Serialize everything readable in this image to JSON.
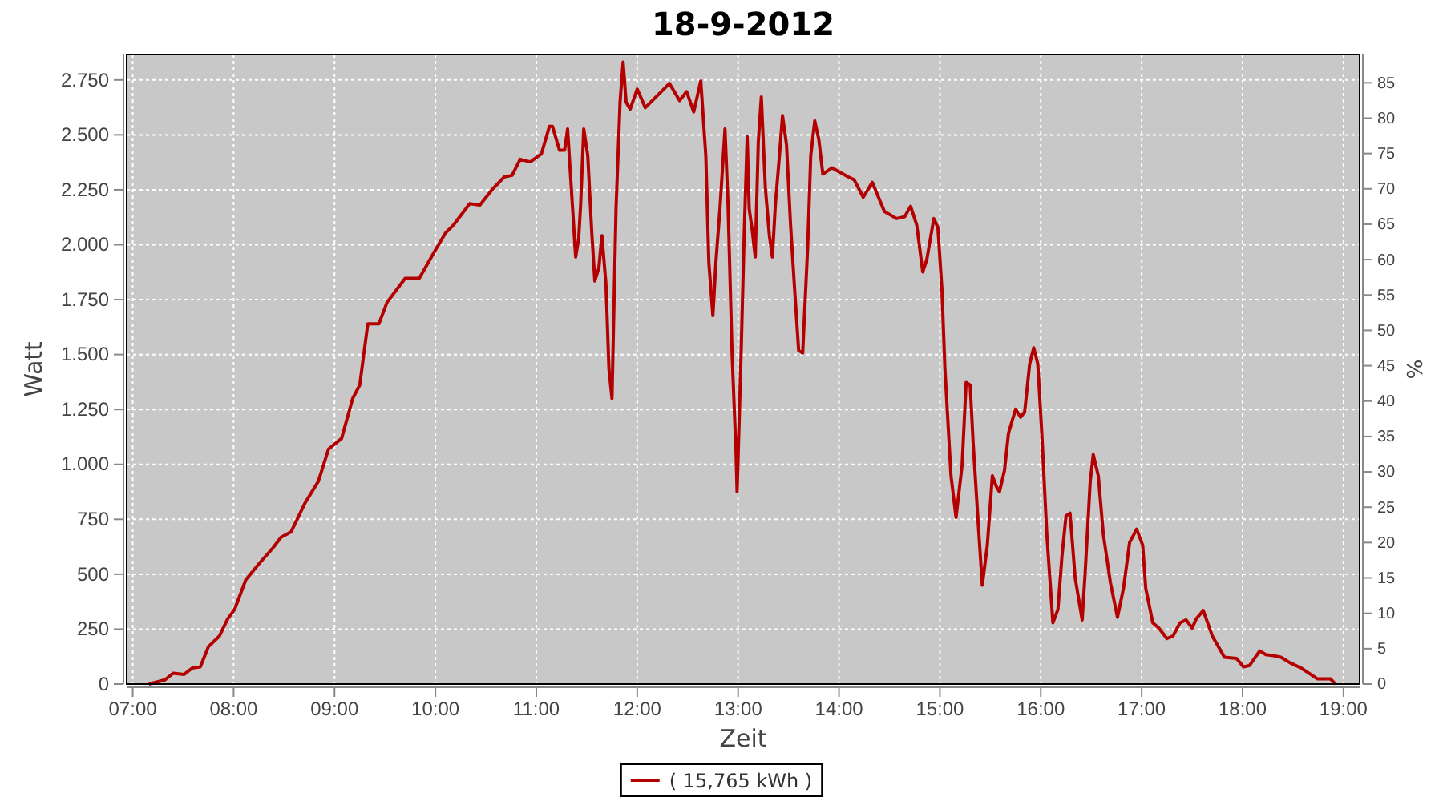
{
  "chart_data": {
    "type": "line",
    "title": "18-9-2012",
    "xlabel": "Zeit",
    "ylabel": "Watt",
    "y2label": "%",
    "xlim": [
      6.94,
      19.16
    ],
    "ylim": [
      0,
      2866
    ],
    "y2lim": [
      0,
      89
    ],
    "xticks": [
      {
        "value": 7,
        "label": "07:00"
      },
      {
        "value": 8,
        "label": "08:00"
      },
      {
        "value": 9,
        "label": "09:00"
      },
      {
        "value": 10,
        "label": "10:00"
      },
      {
        "value": 11,
        "label": "11:00"
      },
      {
        "value": 12,
        "label": "12:00"
      },
      {
        "value": 13,
        "label": "13:00"
      },
      {
        "value": 14,
        "label": "14:00"
      },
      {
        "value": 15,
        "label": "15:00"
      },
      {
        "value": 16,
        "label": "16:00"
      },
      {
        "value": 17,
        "label": "17:00"
      },
      {
        "value": 18,
        "label": "18:00"
      },
      {
        "value": 19,
        "label": "19:00"
      }
    ],
    "yticks": [
      0,
      250,
      500,
      750,
      {
        "value": 1000,
        "label": "1.000"
      },
      {
        "value": 1250,
        "label": "1.250"
      },
      {
        "value": 1500,
        "label": "1.500"
      },
      {
        "value": 1750,
        "label": "1.750"
      },
      {
        "value": 2000,
        "label": "2.000"
      },
      {
        "value": 2250,
        "label": "2.250"
      },
      {
        "value": 2500,
        "label": "2.500"
      },
      {
        "value": 2750,
        "label": "2.750"
      }
    ],
    "y2ticks": [
      0,
      5,
      10,
      15,
      20,
      25,
      30,
      35,
      40,
      45,
      50,
      55,
      60,
      65,
      70,
      75,
      80,
      85
    ],
    "grid": true,
    "legend": "bottom",
    "marker": "none",
    "line_style": "solid",
    "series": [
      {
        "name": "( 15,765 kWh )",
        "color": "#b40000",
        "x": [
          7.16,
          7.32,
          7.4,
          7.51,
          7.59,
          7.67,
          7.75,
          7.86,
          7.94,
          8.01,
          8.12,
          8.25,
          8.39,
          8.47,
          8.57,
          8.71,
          8.84,
          8.94,
          9.07,
          9.18,
          9.25,
          9.33,
          9.44,
          9.52,
          9.7,
          9.84,
          9.99,
          10.1,
          10.18,
          10.34,
          10.44,
          10.57,
          10.68,
          10.76,
          10.84,
          10.94,
          11.05,
          11.13,
          11.16,
          11.23,
          11.28,
          11.31,
          11.34,
          11.39,
          11.42,
          11.44,
          11.47,
          11.51,
          11.55,
          11.58,
          11.62,
          11.65,
          11.69,
          11.72,
          11.75,
          11.79,
          11.83,
          11.86,
          11.89,
          11.93,
          12,
          12.08,
          12.32,
          12.42,
          12.49,
          12.56,
          12.63,
          12.68,
          12.71,
          12.75,
          12.78,
          12.82,
          12.87,
          12.9,
          12.94,
          12.98,
          12.99,
          13.03,
          13.06,
          13.09,
          13.11,
          13.14,
          13.17,
          13.2,
          13.23,
          13.27,
          13.31,
          13.34,
          13.37,
          13.41,
          13.44,
          13.48,
          13.52,
          13.56,
          13.6,
          13.64,
          13.69,
          13.72,
          13.76,
          13.8,
          13.84,
          13.93,
          14.09,
          14.15,
          14.24,
          14.33,
          14.45,
          14.57,
          14.65,
          14.71,
          14.77,
          14.83,
          14.87,
          14.94,
          14.98,
          15.02,
          15.05,
          15.11,
          15.16,
          15.22,
          15.26,
          15.3,
          15.33,
          15.38,
          15.42,
          15.47,
          15.52,
          15.56,
          15.59,
          15.64,
          15.68,
          15.75,
          15.8,
          15.84,
          15.89,
          15.93,
          15.97,
          16.01,
          16.06,
          16.12,
          16.17,
          16.21,
          16.25,
          16.29,
          16.34,
          16.41,
          16.44,
          16.49,
          16.52,
          16.57,
          16.62,
          16.69,
          16.76,
          16.82,
          16.88,
          16.95,
          17.01,
          17.04,
          17.11,
          17.17,
          17.25,
          17.31,
          17.38,
          17.44,
          17.5,
          17.54,
          17.61,
          17.7,
          17.82,
          17.94,
          18.01,
          18.07,
          18.17,
          18.23,
          18.31,
          18.38,
          18.47,
          18.58,
          18.66,
          18.74,
          18.87,
          18.92
        ],
        "values": [
          0,
          19,
          49,
          44,
          73,
          78,
          170,
          219,
          296,
          340,
          474,
          547,
          620,
          668,
          693,
          826,
          923,
          1069,
          1118,
          1300,
          1361,
          1640,
          1640,
          1737,
          1847,
          1847,
          1968,
          2053,
          2090,
          2187,
          2180,
          2255,
          2308,
          2316,
          2389,
          2377,
          2413,
          2539,
          2539,
          2430,
          2430,
          2527,
          2309,
          1944,
          2029,
          2187,
          2527,
          2406,
          2053,
          1835,
          1895,
          2041,
          1823,
          1434,
          1300,
          2163,
          2649,
          2831,
          2649,
          2617,
          2709,
          2624,
          2734,
          2656,
          2697,
          2605,
          2746,
          2406,
          1920,
          1677,
          1920,
          2163,
          2527,
          2187,
          1507,
          1045,
          875,
          1507,
          2041,
          2491,
          2163,
          2066,
          1944,
          2466,
          2673,
          2260,
          2041,
          1944,
          2187,
          2406,
          2588,
          2454,
          2090,
          1798,
          1519,
          1507,
          1993,
          2406,
          2564,
          2479,
          2321,
          2350,
          2309,
          2296,
          2216,
          2284,
          2151,
          2119,
          2127,
          2175,
          2090,
          1876,
          1932,
          2119,
          2078,
          1798,
          1434,
          948,
          758,
          996,
          1373,
          1361,
          1094,
          729,
          450,
          632,
          948,
          899,
          875,
          972,
          1142,
          1251,
          1215,
          1239,
          1458,
          1531,
          1458,
          1142,
          680,
          279,
          340,
          583,
          765,
          778,
          486,
          292,
          510,
          923,
          1045,
          948,
          680,
          462,
          304,
          437,
          644,
          705,
          632,
          437,
          279,
          255,
          207,
          219,
          279,
          292,
          255,
          296,
          335,
          219,
          122,
          117,
          78,
          85,
          151,
          134,
          129,
          122,
          97,
          73,
          49,
          24,
          24,
          0
        ]
      }
    ]
  }
}
